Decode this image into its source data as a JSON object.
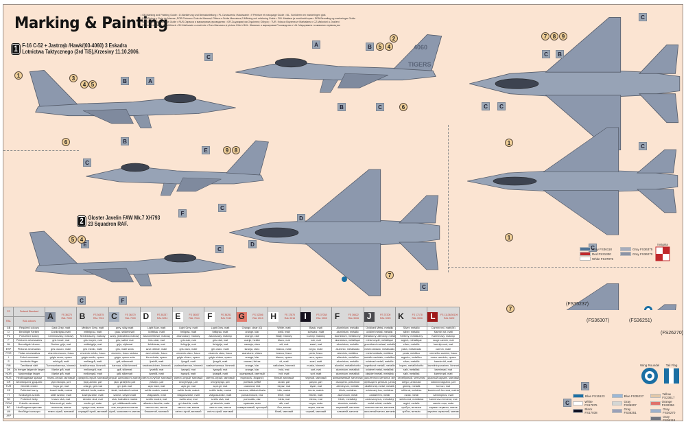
{
  "header": {
    "title": "Marking & Painting",
    "guide_lines": [
      "• GB.Marking and Painting Guide • D.Markierung und Bemalanleitung • PL.Oznaczenia i Malowanie • F.Peinture et marquage Guide • NL. Schilderen en markeringen gids",
      "• ESP.Pintura y Guía de Marcas.,POR.Pintura e Guia de Marcas,I.Pittura e Guida Marcatura,S.Målning och märkning Guide • FIN. Maalaus ja merkinnät opas • DEN.Bemaling og markeringer Guide",
      "• NOR.Maleri og Markings Guide • RUS.Окраска и маркировка руководство • GR.Ζωγραφική και Σημάνσεις Οδηγός • TUR. Kılavuz Boyama ve Markalama • CZ.Malování a Značení",
      "• H.Festék rendezer és jelölések • SK.Maľovanie a značenie • Rom.Marcarea și pictura Ghid • BUL. Живопис и маркировка Ръководство • UA. Маркування та живопис керівництво"
    ]
  },
  "schemes": [
    {
      "number": "1",
      "line1": "F-16 C-52 + Jastrząb /Hawk/(03-4060) 3 Eskadra",
      "line2": "Lotnictwa Taktycznego (3rd TiS),Krzesiny 11.10.2006."
    },
    {
      "number": "2",
      "line1": "Gloster Javelin FAW Mk.7 XH793",
      "line2": "23 Squadron RAF."
    }
  ],
  "callouts": {
    "A": "A",
    "B": "B",
    "C": "C",
    "D": "D",
    "E": "E",
    "F": "F",
    "n1": "1",
    "n2": "2",
    "n3": "3",
    "n4": "4",
    "n5": "5",
    "n6": "6",
    "n7": "7",
    "n8": "8",
    "n9": "9"
  },
  "fs_callouts": [
    "(FS35237)",
    "(FS36307)",
    "(FS36251)",
    "(FS26270)"
  ],
  "aircraft_text": {
    "tail_code": "4060",
    "tail_name": "TIGERS"
  },
  "legend1": {
    "items": [
      {
        "label": "Gray FS36118",
        "color": "#4f7396"
      },
      {
        "label": "Gray FS36375",
        "color": "#a7adbd"
      },
      {
        "label": "Red FS31300",
        "color": "#c0282c"
      },
      {
        "label": "Gray FS36270",
        "color": "#8b93a5"
      },
      {
        "label": "White FS37875",
        "color": "#ffffff"
      }
    ],
    "insignia_label": "Insignia"
  },
  "legend2": {
    "items": [
      {
        "label": "Blue FS15123",
        "color": "#1b6fa3"
      },
      {
        "label": "Blue FS35237",
        "color": "#9bb7d6"
      },
      {
        "label": "Yellow FS23617",
        "color": "#e3c8a8"
      },
      {
        "label": "White FS17875",
        "color": "#ffffff"
      },
      {
        "label": "Gray FS36307",
        "color": "#d4d6d4"
      },
      {
        "label": "Orange FS32356",
        "color": "#e0706a"
      },
      {
        "label": "Black FS17038",
        "color": "#111122"
      },
      {
        "label": "Gray FS36251",
        "color": "#9aa0b8"
      },
      {
        "label": "Gray FS26270",
        "color": "#9cb0cc"
      },
      {
        "label": "",
        "color": ""
      },
      {
        "label": "",
        "color": ""
      },
      {
        "label": "Gray FS36118",
        "color": "#707580"
      }
    ],
    "roundel_label": "Wing Roundel",
    "flag_label": "Tail Flag"
  },
  "table": {
    "header_lang": [
      "FS",
      "RAL"
    ],
    "header_names": [
      "Federal Standard",
      "RAL colours"
    ],
    "langs": [
      "GB",
      "D",
      "PL",
      "F",
      "NL",
      "ESP",
      "POR",
      "I",
      "S",
      "FIN",
      "DK",
      "NOR",
      "RUS",
      "GR",
      "TUR",
      "CZ",
      "H",
      "SK",
      "ROM",
      "BG",
      "UA",
      "JAP"
    ],
    "row_names": [
      "Required colours",
      "Benötigte Farben",
      "Potrzebne kolory",
      "Peintures nécessaires",
      "Benodigde kleuren",
      "Pinturas necesarias",
      "Tintas necessárias",
      "Colori necessari",
      "Använda färger",
      "Tarvittavat värit",
      "Du trenger følgende farger",
      "Nødvendige farger",
      "Необходимые краски",
      "Απαιτούμενα χρώματα",
      "Gerekli renkler",
      "Potřebné barvy",
      "Szükséges színek",
      "Potrebné farby",
      "Culorile necesare",
      "Необходими цветове",
      "Необхідні кольори",
      ""
    ],
    "columns": [
      {
        "letter": "A",
        "swatch": "#8e97a6",
        "fs": "FS 36270",
        "ral": "RAL 7000",
        "values": [
          "Dark Grey, matt",
          "Dunkelgrau,matt",
          "Ciemnoszary, matowy",
          "gris foncé, mat",
          "Donker grijs, mat",
          "gris oscuro, mate",
          "cinzento escuro, fosco",
          "grigio scuro, opaco",
          "mörkgrå, matt",
          "Tummanharmaa, himmeä",
          "Mørke grå, matt",
          "Mørke grå, matt",
          "темно-серый, матовый",
          "γκρι σκούρο, ματ",
          "Koyu gri, mat",
          "tmavě šedá, matná",
          "sötét szürke, matt",
          "tmavo sivá, mat",
          "Întunecat gri, mate",
          "тъмносив, матов",
          "темно-сірий, матовий",
          ""
        ]
      },
      {
        "letter": "B",
        "swatch": "#d9d9d9",
        "fs": "FS 36375",
        "ral": "RAL 7001",
        "values": [
          "Medium Grey, matt",
          "mittelgrau, matt",
          "Średnioszary, matowy",
          "gris moyen, mat",
          "middelgrijs, mat",
          "gris medio, mate",
          "cinzento médio, fosco",
          "grigio medio, opaco",
          "mellangrå, matt",
          "keskiharmaa, himmeä",
          "mellomgrå, mat",
          "mellomgrå, matt",
          "средний-серый, матовый",
          "γκρι μεσαίο, ματ",
          "orta gri, gelı mat",
          "středně šedá, matná",
          "középszürke, matt",
          "stredne sivá, mat",
          "mediu gri, mate",
          "среден сив, матов",
          "середній сірий, матовий",
          ""
        ]
      },
      {
        "letter": "C",
        "swatch": "#a9b3c2",
        "fs": "FS 36270",
        "ral": "RAL 7000",
        "values": [
          "grey, silky-matt",
          "grau, seidenmatt",
          "szary, jedwabisto-matowy",
          "gris, satiné mat",
          "grijs, zijdemat",
          "gris, mate seda",
          "cinzento, fosco sedoso",
          "grigio, opaco seta",
          "grå, sidenmatt",
          "harmaa, silkinhimmeä",
          "grå, silkemat",
          "grå, silkematt",
          "серый, шелковисто-матовый",
          "γκρι, μεταξένιο ματ",
          "gri, ipek mat",
          "šedá, hedvábně matná",
          "szürke, selyemmatt",
          "sivá, hodvábne matná",
          "gri, mătăsoasă-mate",
          "сив, копринено-матов",
          "сірий, шовковисто-матовий",
          ""
        ]
      },
      {
        "letter": "D",
        "swatch": "#ffffff",
        "fs": "FS 35237",
        "ral": "RAL 5024",
        "values": [
          "Light Blue, matt",
          "lichtblau, matt",
          "Jasnoniebieski, matowy",
          "bleu clair, mat",
          "lichtblauw, mat",
          "azul celeste, mate",
          "azul celeste, fosco",
          "blu celeste, opaco",
          "ljusblå, matt",
          "vaaleansininen, himmeä",
          "lyseblå, mat",
          "lyseblå, matt",
          "светло-голубой, матовый",
          "γαλάζιο, ματ",
          "açık mavi, mat",
          "světle modrá, matná",
          "világoskék, matt",
          "svetlo modrá, mat",
          "albastru deschis, mate",
          "светло син, матов",
          "блакитний, матовий",
          ""
        ]
      },
      {
        "letter": "E",
        "swatch": "#ffffff",
        "fs": "FS 36307",
        "ral": "RAL 7044",
        "values": [
          "Light Grey, matt",
          "hellgrau, matt",
          "Jasnoszary, matowy",
          "gris clair, mat",
          "lichtgrijs, mat",
          "gris claro, mate",
          "cinzento claro, fosco",
          "grigio chiaro, opaco",
          "ljusgrå, matt",
          "vaaleanharmaa, himmeä",
          "lysegrå, mat",
          "lysegrå, matt",
          "светло-серый, матовый",
          "ανοιχτόγκρι, ματ",
          "açık gri, mat",
          "světle šedá, matná",
          "világosszürke, matt",
          "svetlo sivá, mat",
          "gri deschis, mate",
          "светло сив, матов",
          "світло-сірий, матовий",
          ""
        ]
      },
      {
        "letter": "F",
        "swatch": "#ffffff",
        "fs": "FS 36251",
        "ral": "RAL 7040",
        "values": [
          "Light Grey, matt",
          "hellgrau, matt",
          "Jasnoszary, matowy",
          "gris clair, mat",
          "lichtgrijs, mat",
          "gris claro, mate",
          "cinzento claro, fosco",
          "grigio chiaro, opaco",
          "ljusgrå, matt",
          "vaaleanharmaa, himmeä",
          "lysegrå, mat",
          "lysegrå, matt",
          "светло-серый, матовый",
          "ανοιχτόγκρι, ματ",
          "açık gri, mat",
          "světle šedá, matná",
          "világosszürke, matt",
          "svetlo sivá, mat",
          "gri deschis, mate",
          "светло сив, матов",
          "світло-сірий, матовий",
          ""
        ]
      },
      {
        "letter": "G",
        "swatch": "#e47a6c",
        "fs": "FS 32356",
        "ral": "RAL 2010",
        "values": [
          "Orange, clear (G)",
          "orange, klar",
          "orange, clair",
          "oranje, helder",
          "naranja, claro",
          "laranja, claro",
          "arancione, chiaro",
          "orange, klar",
          "oranssi, kirkas",
          "orange, klar",
          "orange, klar",
          "оранжевый, светлый",
          "πορτοκαλί, διαφανές",
          "portakal, şeffaf",
          "oranžová, čirá",
          "narancs, átlátszó-tiszta",
          "pomarančová, číra",
          "portocaliu, clar",
          "оранжев, ясен",
          "помаранчевий, прозорий",
          "",
          ""
        ]
      },
      {
        "letter": "H",
        "swatch": "#ffffff",
        "fs": "FS 17875",
        "ral": "RAL 9016",
        "values": [
          "White, matt",
          "weiß, matt",
          "Biały, matowy",
          "blanc, mat",
          "wit, mat",
          "blanco, mate",
          "branco, fosco",
          "bianco, opaco",
          "vit, matt",
          "valkoinen, himmeä",
          "hvid, mat",
          "hvit, matt",
          "белый, матовый",
          "λευκό, ματ",
          "beyaz, mat",
          "bílá, matná",
          "fehér, matt",
          "biela, mat",
          "alb, mat",
          "бял, матов",
          "білий, матовий",
          ""
        ]
      },
      {
        "letter": "I",
        "swatch": "#15111e",
        "fs": "FS 37038",
        "ral": "RAL 9005",
        "values": [
          "Black, matt",
          "schwarz, matt",
          "Czarny, matowy",
          "noir, mat",
          "zwart, mat",
          "negro, mate",
          "preto, fosco",
          "nero, opaco",
          "svart, matt",
          "musta, himmeä",
          "sort, mat",
          "sort, matt",
          "черный, матовый",
          "μαύρο, ματ",
          "siyah, mat",
          "černá, matná",
          "fekete, matt",
          "čierna, mat",
          "negru, mate",
          "черен, матов",
          "чорний, матовий",
          ""
        ]
      },
      {
        "letter": "F",
        "swatch": "#d9d9d9",
        "fs": "FS 36622",
        "ral": "RAL 9006",
        "values": [
          "Aluminium, metallic",
          "aluminium, metallic",
          "Aluminium, metaliczny",
          "aluminium, métallique",
          "aluminium, metallic",
          "aluminio, metalizado",
          "alumínio, metálico",
          "alluminio, metallico",
          "aluminium, metallic",
          "alumiini, metallinhohto",
          "aluminium, metallisk",
          "aluminium, metallisk",
          "алюминиевый, металлик",
          "αλουμίνιο, μεταλλικό",
          "alüminyum, metalik",
          "hliník, metalíza",
          "alumínium, metál",
          "hliník, metalický",
          "aluminiu, metalic",
          "алуминий, металик",
          "алюміній, металік",
          ""
        ]
      },
      {
        "letter": "J",
        "swatch": "#4a4a4e",
        "fs": "FS 37200",
        "ral": "RAL 9023",
        "values": [
          "Oxidised Metal, metallic",
          "oxidiert metall, metallic",
          "Metaliczny utleniony, metaliczny",
          "métal oxydé, métallique",
          "geoxideerd metaal, metallic",
          "metal oxidado, metalizado",
          "metal oxidado, metálico",
          "metallo ossidato, metallico",
          "oxiderad metall, metallic",
          "hapettunut metalli, metallinhohto",
          "oxideret metal, metallisk",
          "oksidert metall, metallisk",
          "окисленного металла, металлик",
          "οξειδωμένο μέταλλο, μεταλλικό",
          "oksitlenmiş metal, metalik",
          "oxidovaný kov, metalíza",
          "oxidált fém, metál",
          "oxidovaný kov, metalický",
          "metal oxidat, metalic",
          "окислен метал, металик",
          "окислений метал, металік",
          ""
        ]
      },
      {
        "letter": "K",
        "swatch": "#d9d9d9",
        "fs": "FS 17178",
        "ral": "RAL 9006",
        "values": [
          "Silver, metallic",
          "silber, metallic",
          "Srebrny, metaliczny",
          "argent, métallique",
          "zilver, metallic",
          "plata, metalizado",
          "prata, metálico",
          "argento, metallico",
          "silver, metallic",
          "hopea, metallinhohto",
          "sølv, metallisk",
          "sølv, metallisk",
          "серебряный, металлик",
          "ασημί, μεταλλικό",
          "gümüş, metalik",
          "stříbrná, metalíza",
          "ezüst, metál",
          "strieborná, metalická",
          "argint, metalic",
          "сребро, металик",
          "срібло, металік",
          ""
        ]
      },
      {
        "letter": "L",
        "swatch": "#9e1a1a",
        "fs": "FS 11136/30109",
        "ral": "RAL 3002",
        "values": [
          "Carmin red, matt (M)",
          "Karmin rot, matt",
          "Karminowy, matowy",
          "rouge carmin, mat",
          "karmijnrood, mat",
          "carmín, mate",
          "vermelho carmim, fosco",
          "rosso carminio, opaco",
          "karminröd, matt",
          "karmiininpunainen, himmeä",
          "karminrød, mat",
          "karminrød, matt",
          "красный кармин, матовый",
          "κόκκινο καρμίνιο, ματ",
          "kırmızı, mat",
          "karmínově červená, matná",
          "kárminpiros, matt",
          "karmínovo červená, mat",
          "carmin roșu, mate",
          "кармин червено, матов",
          "карміно-червоний, матовий",
          ""
        ]
      }
    ]
  }
}
